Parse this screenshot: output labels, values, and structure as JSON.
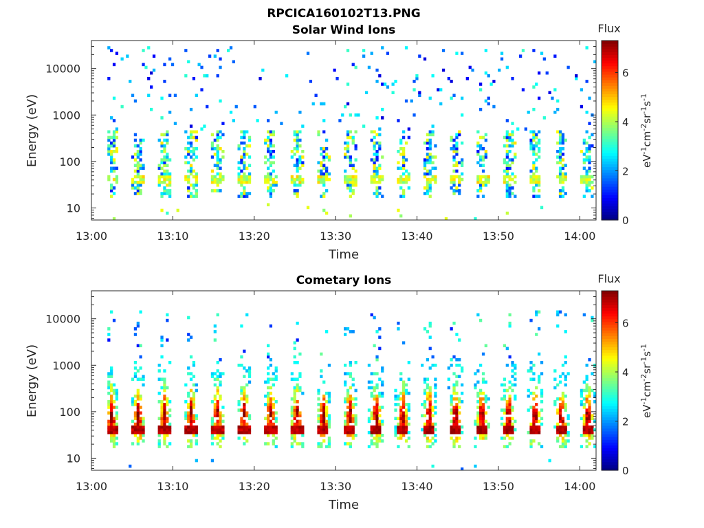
{
  "figure": {
    "title": "RPCICA160102T13.PNG"
  },
  "chart_data": [
    {
      "type": "heatmap",
      "title": "Solar Wind Ions",
      "xlabel": "Time",
      "ylabel": "Energy (eV)",
      "yscale": "log",
      "ylim": [
        5.5,
        40000
      ],
      "xlim": [
        "13:00",
        "14:02"
      ],
      "x_ticks": [
        "13:00",
        "13:10",
        "13:20",
        "13:30",
        "13:40",
        "13:50",
        "14:00"
      ],
      "y_ticks": [
        "10",
        "100",
        "1000",
        "10000"
      ],
      "grid": false,
      "colorbar": {
        "title": "Flux",
        "unit_label": "eV-1cm-2sr-1s-1",
        "unit_parts": [
          "eV",
          "-1",
          "cm",
          "-2",
          "sr",
          "-1",
          "s",
          "-1"
        ],
        "range": [
          0,
          7.3
        ],
        "ticks": [
          "0",
          "2",
          "4",
          "6"
        ],
        "colormap": "jet"
      },
      "population": "solar-wind",
      "sweep_period_min": 3.25,
      "first_sweep_min": 2.5,
      "sweep_count": 19
    },
    {
      "type": "heatmap",
      "title": "Cometary Ions",
      "xlabel": "Time",
      "ylabel": "Energy (eV)",
      "yscale": "log",
      "ylim": [
        5.5,
        40000
      ],
      "xlim": [
        "13:00",
        "14:02"
      ],
      "x_ticks": [
        "13:00",
        "13:10",
        "13:20",
        "13:30",
        "13:40",
        "13:50",
        "14:00"
      ],
      "y_ticks": [
        "10",
        "100",
        "1000",
        "10000"
      ],
      "grid": false,
      "colorbar": {
        "title": "Flux",
        "unit_label": "eV-1cm-2sr-1s-1",
        "unit_parts": [
          "eV",
          "-1",
          "cm",
          "-2",
          "sr",
          "-1",
          "s",
          "-1"
        ],
        "range": [
          0,
          7.3
        ],
        "ticks": [
          "0",
          "2",
          "4",
          "6"
        ],
        "colormap": "jet"
      },
      "population": "cometary",
      "sweep_period_min": 3.25,
      "first_sweep_min": 2.5,
      "sweep_count": 19
    }
  ]
}
